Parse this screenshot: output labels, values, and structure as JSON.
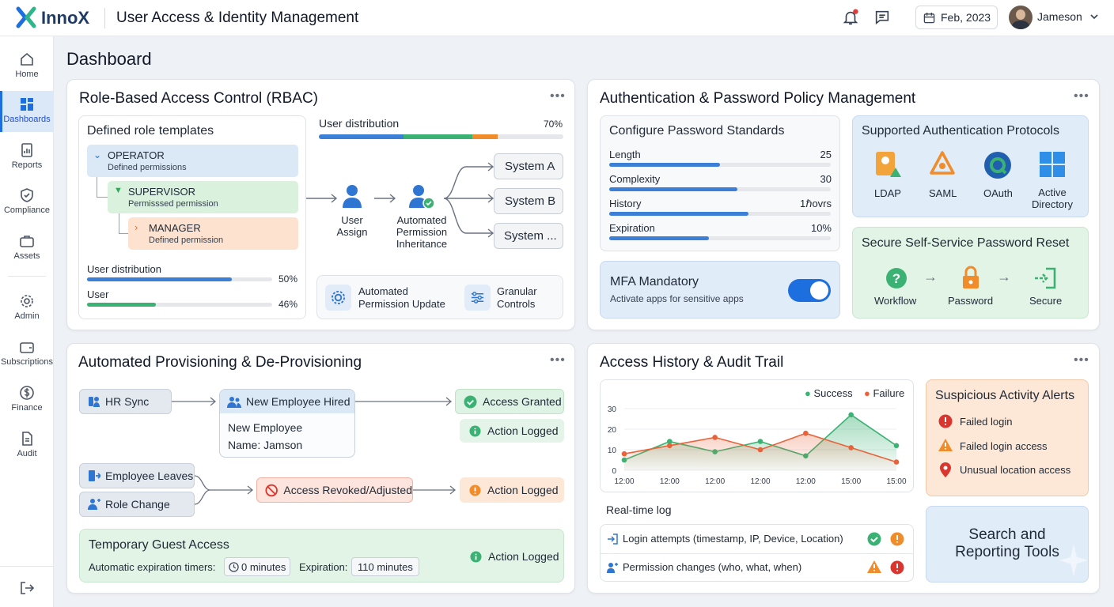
{
  "app": {
    "brand": "InnoX",
    "title": "User Access & Identity Management",
    "date": "Feb, 2023",
    "user": "Jameson"
  },
  "nav": [
    {
      "label": "Home"
    },
    {
      "label": "Dashboards"
    },
    {
      "label": "Reports"
    },
    {
      "label": "Compliance"
    },
    {
      "label": "Assets"
    },
    {
      "label": "Admin"
    },
    {
      "label": "Subscriptions"
    },
    {
      "label": "Finance"
    },
    {
      "label": "Audit"
    }
  ],
  "page_title": "Dashboard",
  "rbac": {
    "title": "Role-Based Access Control (RBAC)",
    "templates_title": "Defined role templates",
    "roles": [
      {
        "name": "OPERATOR",
        "desc": "Defined permissions"
      },
      {
        "name": "SUPERVISOR",
        "desc": "Permisssed permission"
      },
      {
        "name": "MANAGER",
        "desc": "Defined permission"
      }
    ],
    "dist1_label": "User distribution",
    "dist1_value": "50%",
    "dist1_fill": 0.78,
    "dist2_label": "User",
    "dist2_value": "46%",
    "dist2_fill": 0.37,
    "top_dist_label": "User distribution",
    "top_dist_value": "70%",
    "user_assign": "User Assign",
    "inherit": "Automated Permission Inheritance",
    "systems": [
      "System A",
      "System B",
      "System ..."
    ],
    "auto_update": "Automated Permission Update",
    "granular": "Granular Controls"
  },
  "auth": {
    "title": "Authentication & Password Policy Management",
    "pw_title": "Configure Password Standards",
    "pw": [
      {
        "label": "Length",
        "value": "25",
        "fill": 0.5
      },
      {
        "label": "Complexity",
        "value": "30",
        "fill": 0.58
      },
      {
        "label": "History",
        "value": "1ℏovrs",
        "fill": 0.63
      },
      {
        "label": "Expiration",
        "value": "10%",
        "fill": 0.45
      }
    ],
    "mfa_title": "MFA Mandatory",
    "mfa_desc": "Activate apps for sensitive apps",
    "proto_title": "Supported Authentication Protocols",
    "protocols": [
      "LDAP",
      "SAML",
      "OAuth",
      "Active Directory"
    ],
    "reset_title": "Secure Self-Service Password Reset",
    "reset_steps": [
      "Workflow",
      "Password",
      "Secure"
    ]
  },
  "prov": {
    "title": "Automated Provisioning & De-Provisioning",
    "hr_sync": "HR Sync",
    "new_hire": "New Employee Hired",
    "new_emp": "New Employee",
    "name": "Name: Jamson",
    "granted": "Access Granted",
    "logged": "Action Logged",
    "leaves": "Employee Leaves",
    "role_change": "Role Change",
    "revoked": "Access Revoked/Adjusted",
    "guest_title": "Temporary Guest Access",
    "timers_label": "Automatic expiration timers:",
    "timer_value": "0 minutes",
    "exp_label": "Expiration:",
    "exp_value": "110 minutes"
  },
  "audit": {
    "title": "Access History & Audit Trail",
    "legend": [
      "Success",
      "Failure"
    ],
    "log_title": "Real-time log",
    "log": [
      "Login attempts (timestamp, IP, Device, Location)",
      "Permission changes (who, what, when)"
    ],
    "alerts_title": "Suspicious Activity Alerts",
    "alerts": [
      "Failed login",
      "Failed login access",
      "Unusual location access"
    ],
    "search": "Search and Reporting Tools"
  },
  "chart_data": {
    "type": "area",
    "categories": [
      "12:00",
      "12:00",
      "12:00",
      "12:00",
      "12:00",
      "15:00",
      "15:00"
    ],
    "yticks": [
      "0",
      "10",
      "20",
      "30"
    ],
    "ylim": [
      0,
      30
    ],
    "series": [
      {
        "name": "Success",
        "values": [
          5,
          14,
          9,
          14,
          7,
          27,
          12
        ]
      },
      {
        "name": "Failure",
        "values": [
          8,
          12,
          16,
          10,
          18,
          11,
          4
        ]
      }
    ]
  },
  "colors": {
    "success": "#3bb273",
    "failure": "#e8633a",
    "orange": "#f08c2a",
    "blue": "#2f76d2"
  }
}
